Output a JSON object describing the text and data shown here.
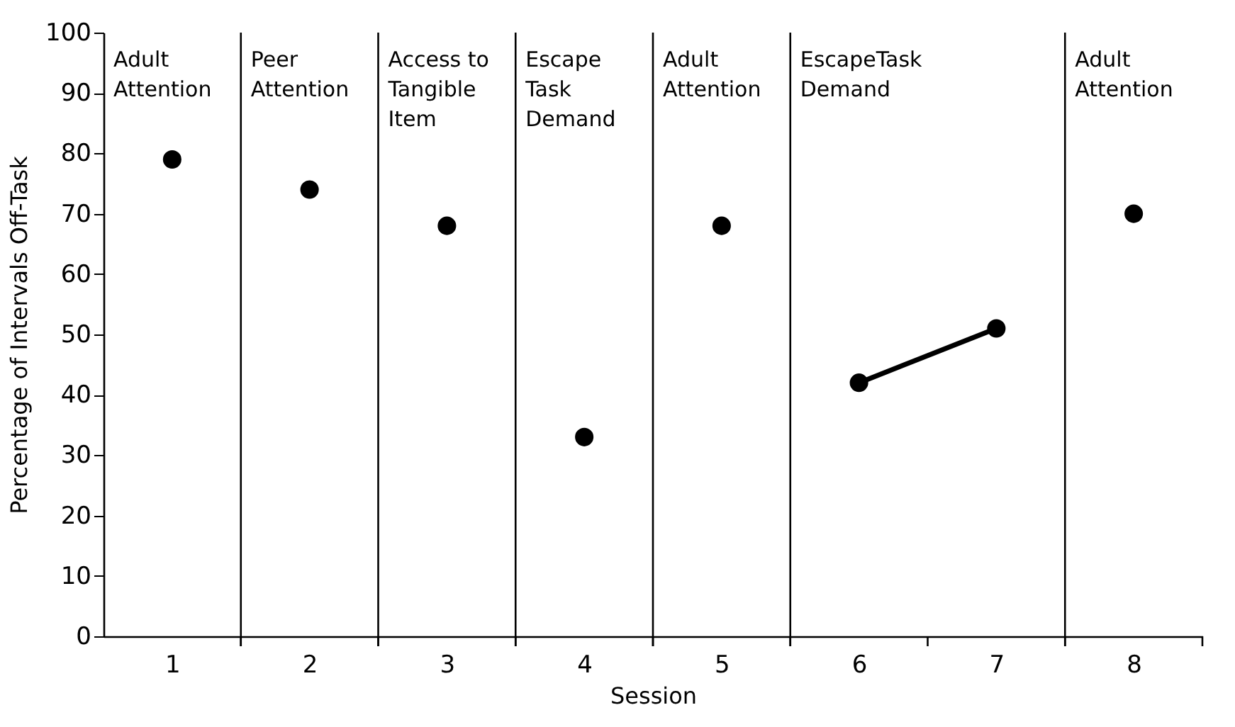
{
  "chart_data": {
    "type": "scatter",
    "xlabel": "Session",
    "ylabel": "Percentage of Intervals Off-Task",
    "series": [
      {
        "color": "#000000",
        "x": [
          1,
          2,
          3,
          4,
          5,
          8
        ],
        "values": [
          79,
          74,
          68,
          33,
          68,
          70
        ]
      },
      {
        "type": "line",
        "color": "#000000",
        "x": [
          6,
          7
        ],
        "values": [
          42,
          51
        ]
      }
    ],
    "marker": "circle",
    "line_style": "solid",
    "xlim": [
      0.5,
      8.5
    ],
    "ylim": [
      0,
      100
    ],
    "xticks": [
      1,
      2,
      3,
      4,
      5,
      6,
      7,
      8,
      {
        "value": 1.5,
        "label": null
      },
      {
        "value": 2.5,
        "label": null
      },
      {
        "value": 3.5,
        "label": null
      },
      {
        "value": 4.5,
        "label": null
      },
      {
        "value": 5.5,
        "label": null
      },
      {
        "value": 6.5,
        "label": null
      },
      {
        "value": 7.5,
        "label": null
      },
      {
        "value": 8.5,
        "label": null
      }
    ],
    "yticks": [
      0,
      10,
      20,
      30,
      40,
      50,
      60,
      70,
      80,
      90,
      100
    ],
    "annotations": [
      "Adult\nAttention"
    ],
    "ref_lines": [
      {
        "axis": "x",
        "value": 1.5,
        "color": "#000000",
        "label": "Peer\nAttention"
      },
      {
        "axis": "x",
        "value": 2.5,
        "color": "#000000",
        "label": "Access to\nTangible\nItem"
      },
      {
        "axis": "x",
        "value": 3.5,
        "color": "#000000",
        "label": "Escape\nTask\nDemand"
      },
      {
        "axis": "x",
        "value": 4.5,
        "color": "#000000",
        "label": "Adult\nAttention"
      },
      {
        "axis": "x",
        "value": 5.5,
        "color": "#000000",
        "label": "EscapeTask\nDemand"
      },
      {
        "axis": "x",
        "value": 7.5,
        "color": "#000000",
        "label": "Adult\nAttention"
      }
    ],
    "grid": false
  }
}
